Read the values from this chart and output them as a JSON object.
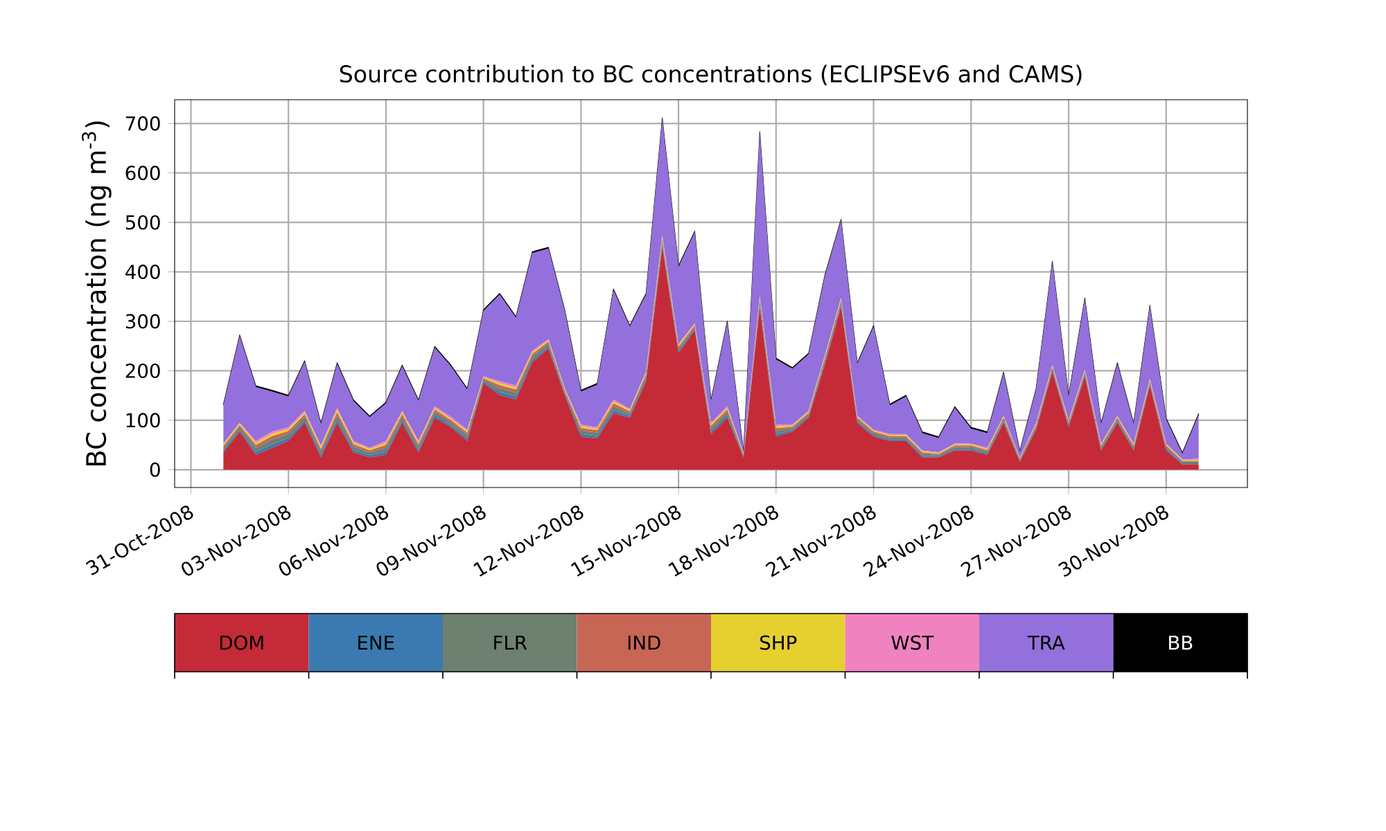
{
  "chart_data": {
    "type": "area",
    "stacked": true,
    "title": "Source contribution to BC concentrations (ECLIPSEv6 and CAMS)",
    "ylabel": "BC concentration (ng m$^{-3}$)",
    "x": [
      "2008-11-01T00:00",
      "2008-11-01T12:00",
      "2008-11-02T00:00",
      "2008-11-02T12:00",
      "2008-11-03T00:00",
      "2008-11-03T12:00",
      "2008-11-04T00:00",
      "2008-11-04T12:00",
      "2008-11-05T00:00",
      "2008-11-05T12:00",
      "2008-11-06T00:00",
      "2008-11-06T12:00",
      "2008-11-07T00:00",
      "2008-11-07T12:00",
      "2008-11-08T00:00",
      "2008-11-08T12:00",
      "2008-11-09T00:00",
      "2008-11-09T12:00",
      "2008-11-10T00:00",
      "2008-11-10T12:00",
      "2008-11-11T00:00",
      "2008-11-11T12:00",
      "2008-11-12T00:00",
      "2008-11-12T12:00",
      "2008-11-13T00:00",
      "2008-11-13T12:00",
      "2008-11-14T00:00",
      "2008-11-14T12:00",
      "2008-11-15T00:00",
      "2008-11-15T12:00",
      "2008-11-16T00:00",
      "2008-11-16T12:00",
      "2008-11-17T00:00",
      "2008-11-17T12:00",
      "2008-11-18T00:00",
      "2008-11-18T12:00",
      "2008-11-19T00:00",
      "2008-11-19T12:00",
      "2008-11-20T00:00",
      "2008-11-20T12:00",
      "2008-11-21T00:00",
      "2008-11-21T12:00",
      "2008-11-22T00:00",
      "2008-11-22T12:00",
      "2008-11-23T00:00",
      "2008-11-23T12:00",
      "2008-11-24T00:00",
      "2008-11-24T12:00",
      "2008-11-25T00:00",
      "2008-11-25T12:00",
      "2008-11-26T00:00",
      "2008-11-26T12:00",
      "2008-11-27T00:00",
      "2008-11-27T12:00",
      "2008-11-28T00:00",
      "2008-11-28T12:00",
      "2008-11-29T00:00",
      "2008-11-29T12:00",
      "2008-11-30T00:00",
      "2008-11-30T12:00",
      "2008-12-01T00:00"
    ],
    "series": [
      {
        "name": "DOM",
        "color": "#c52a38",
        "values": [
          35,
          77,
          30,
          44,
          58,
          95,
          25,
          95,
          35,
          25,
          30,
          95,
          35,
          105,
          86,
          58,
          175,
          151,
          142,
          217,
          245,
          151,
          67,
          63,
          114,
          105,
          179,
          450,
          236,
          282,
          72,
          105,
          25,
          329,
          67,
          77,
          105,
          212,
          329,
          95,
          67,
          58,
          58,
          25,
          25,
          39,
          39,
          30,
          95,
          16,
          81,
          198,
          86,
          189,
          39,
          95,
          39,
          170,
          39,
          11,
          11
        ]
      },
      {
        "name": "ENE",
        "color": "#3a7ab0",
        "values": [
          4,
          4,
          6,
          7,
          6,
          5,
          5,
          6,
          5,
          4,
          6,
          5,
          5,
          5,
          4,
          5,
          3,
          6,
          6,
          5,
          4,
          3,
          5,
          5,
          6,
          4,
          4,
          5,
          4,
          3,
          5,
          5,
          2,
          5,
          5,
          3,
          3,
          4,
          4,
          3,
          3,
          3,
          3,
          3,
          2,
          3,
          3,
          3,
          3,
          2,
          3,
          3,
          3,
          3,
          3,
          3,
          3,
          3,
          3,
          2,
          2
        ]
      },
      {
        "name": "FLR",
        "color": "#6e8070",
        "values": [
          5,
          5,
          8,
          10,
          8,
          7,
          7,
          9,
          7,
          6,
          8,
          7,
          7,
          7,
          6,
          7,
          4,
          8,
          8,
          7,
          6,
          4,
          7,
          7,
          8,
          5,
          6,
          7,
          5,
          4,
          7,
          7,
          3,
          7,
          7,
          4,
          4,
          6,
          6,
          4,
          4,
          4,
          4,
          4,
          3,
          4,
          4,
          4,
          4,
          3,
          4,
          4,
          4,
          4,
          4,
          4,
          4,
          4,
          4,
          3,
          3
        ]
      },
      {
        "name": "IND",
        "color": "#c86656",
        "values": [
          4,
          4,
          6,
          7,
          6,
          5,
          5,
          6,
          5,
          4,
          6,
          5,
          5,
          5,
          4,
          5,
          3,
          6,
          6,
          5,
          4,
          3,
          5,
          5,
          6,
          4,
          4,
          5,
          4,
          3,
          5,
          5,
          2,
          5,
          5,
          3,
          3,
          4,
          4,
          3,
          3,
          3,
          3,
          3,
          2,
          3,
          3,
          3,
          3,
          2,
          3,
          3,
          3,
          3,
          3,
          3,
          3,
          3,
          3,
          2,
          2
        ]
      },
      {
        "name": "SHP",
        "color": "#e6d030",
        "values": [
          3,
          3,
          4,
          5,
          4,
          4,
          4,
          5,
          3,
          3,
          4,
          4,
          3,
          3,
          3,
          3,
          2,
          4,
          4,
          3,
          3,
          2,
          4,
          3,
          4,
          3,
          3,
          4,
          3,
          2,
          3,
          3,
          2,
          3,
          4,
          2,
          2,
          3,
          3,
          2,
          2,
          2,
          2,
          2,
          2,
          2,
          2,
          2,
          2,
          1,
          2,
          2,
          2,
          2,
          2,
          2,
          2,
          2,
          2,
          2,
          2
        ]
      },
      {
        "name": "WST",
        "color": "#f182c0",
        "values": [
          2,
          2,
          4,
          4,
          4,
          3,
          3,
          4,
          3,
          2,
          4,
          3,
          3,
          3,
          4,
          3,
          2,
          4,
          4,
          3,
          2,
          2,
          3,
          3,
          4,
          2,
          2,
          3,
          2,
          2,
          3,
          3,
          1,
          3,
          3,
          2,
          2,
          2,
          2,
          2,
          2,
          2,
          2,
          2,
          1,
          2,
          2,
          2,
          2,
          1,
          2,
          2,
          2,
          2,
          2,
          2,
          2,
          2,
          2,
          1,
          2
        ]
      },
      {
        "name": "TRA",
        "color": "#9370db",
        "values": [
          77,
          175,
          109,
          81,
          62,
          99,
          43,
          89,
          81,
          62,
          76,
          90,
          81,
          119,
          102,
          81,
          132,
          175,
          137,
          198,
          183,
          156,
          67,
          86,
          221,
          166,
          156,
          235,
          156,
          184,
          44,
          170,
          1,
          329,
          132,
          113,
          114,
          160,
          156,
          105,
          208,
          58,
          76,
          35,
          29,
          72,
          30,
          30,
          86,
          11,
          67,
          207,
          48,
          142,
          39,
          105,
          39,
          146,
          49,
          11,
          89
        ]
      },
      {
        "name": "BB",
        "color": "#000000",
        "values": [
          3,
          3,
          3,
          3,
          3,
          3,
          3,
          3,
          3,
          3,
          3,
          3,
          3,
          3,
          3,
          3,
          3,
          3,
          3,
          3,
          3,
          3,
          3,
          3,
          3,
          3,
          3,
          3,
          3,
          3,
          3,
          3,
          3,
          3,
          3,
          3,
          3,
          3,
          3,
          3,
          3,
          3,
          3,
          3,
          3,
          3,
          3,
          3,
          3,
          3,
          3,
          3,
          3,
          3,
          3,
          3,
          3,
          3,
          3,
          3,
          3
        ]
      }
    ],
    "xlim": [
      "2008-10-30T12:00",
      "2008-12-02T12:00"
    ],
    "xticks": [
      {
        "value": "2008-10-31",
        "label": "31-Oct-2008"
      },
      {
        "value": "2008-11-03",
        "label": "03-Nov-2008"
      },
      {
        "value": "2008-11-06",
        "label": "06-Nov-2008"
      },
      {
        "value": "2008-11-09",
        "label": "09-Nov-2008"
      },
      {
        "value": "2008-11-12",
        "label": "12-Nov-2008"
      },
      {
        "value": "2008-11-15",
        "label": "15-Nov-2008"
      },
      {
        "value": "2008-11-18",
        "label": "18-Nov-2008"
      },
      {
        "value": "2008-11-21",
        "label": "21-Nov-2008"
      },
      {
        "value": "2008-11-24",
        "label": "24-Nov-2008"
      },
      {
        "value": "2008-11-27",
        "label": "27-Nov-2008"
      },
      {
        "value": "2008-11-30",
        "label": "30-Nov-2008"
      }
    ],
    "ylim": [
      -36,
      748
    ],
    "yticks": [
      0,
      100,
      200,
      300,
      400,
      500,
      600,
      700
    ],
    "grid": true,
    "legend": "bottom"
  }
}
